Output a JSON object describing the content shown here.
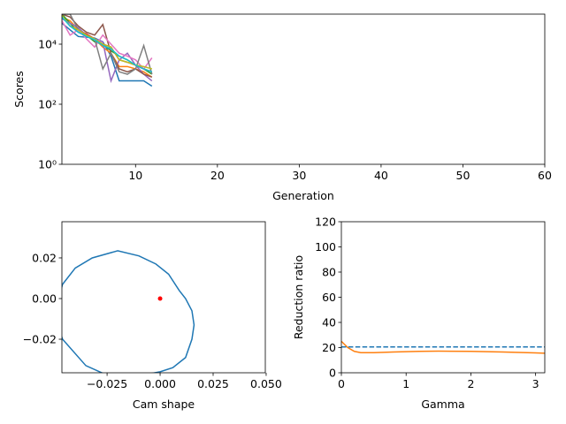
{
  "chart_data": [
    {
      "type": "line",
      "xlabel": "Generation",
      "ylabel": "Scores",
      "yscale": "log",
      "xlim": [
        1,
        60
      ],
      "ylim": [
        1,
        100000
      ],
      "xticks": [
        10,
        20,
        30,
        40,
        50,
        60
      ],
      "yticks": [
        {
          "value": 1,
          "label": "10⁰"
        },
        {
          "value": 100,
          "label": "10²"
        },
        {
          "value": 10000,
          "label": "10⁴"
        }
      ],
      "x": [
        1,
        2,
        3,
        4,
        5,
        6,
        7,
        8,
        9,
        10,
        11,
        12
      ],
      "series": [
        {
          "color": "#1f77b4",
          "values": [
            50000,
            30000,
            18000,
            17000,
            16000,
            12000,
            4000,
            600,
            600,
            600,
            600,
            400
          ]
        },
        {
          "color": "#ff7f0e",
          "values": [
            80000,
            60000,
            30000,
            20000,
            15000,
            8000,
            5000,
            1800,
            1800,
            1500,
            1200,
            800
          ]
        },
        {
          "color": "#2ca02c",
          "values": [
            100000,
            50000,
            25000,
            20000,
            12000,
            10000,
            6000,
            4000,
            3000,
            2000,
            1500,
            1000
          ]
        },
        {
          "color": "#d62728",
          "values": [
            90000,
            40000,
            30000,
            22000,
            15000,
            10000,
            8000,
            3000,
            2500,
            2000,
            1500,
            1200
          ]
        },
        {
          "color": "#9467bd",
          "values": [
            70000,
            50000,
            35000,
            20000,
            15000,
            12000,
            600,
            3000,
            5000,
            2000,
            1000,
            600
          ]
        },
        {
          "color": "#8c564b",
          "values": [
            100000,
            80000,
            40000,
            25000,
            20000,
            45000,
            5000,
            1500,
            1200,
            1500,
            1000,
            800
          ]
        },
        {
          "color": "#e377c2",
          "values": [
            60000,
            20000,
            30000,
            15000,
            8000,
            20000,
            10000,
            5000,
            4000,
            3000,
            1500,
            3500
          ]
        },
        {
          "color": "#7f7f7f",
          "values": [
            100000,
            100000,
            30000,
            20000,
            15000,
            1500,
            5000,
            1200,
            1000,
            1500,
            9000,
            1000
          ]
        },
        {
          "color": "#bcbd22",
          "values": [
            90000,
            40000,
            30000,
            20000,
            15000,
            10000,
            8000,
            3000,
            2500,
            2000,
            1800,
            1500
          ]
        },
        {
          "color": "#17becf",
          "values": [
            80000,
            40000,
            25000,
            18000,
            14000,
            9000,
            7000,
            4000,
            3000,
            2000,
            1500,
            1200
          ]
        }
      ]
    },
    {
      "type": "line",
      "xlabel": "Cam shape",
      "xlim": [
        -0.0463,
        0.0496
      ],
      "ylim": [
        -0.0365,
        0.0378
      ],
      "xticks": [
        {
          "value": -0.025,
          "label": "−0.025"
        },
        {
          "value": 0,
          "label": "0.000"
        },
        0.025,
        {
          "value": 0.05,
          "label": "0.050"
        }
      ],
      "yticks": [
        {
          "value": -0.02,
          "label": "−0.02"
        },
        {
          "value": 0,
          "label": "0.00"
        },
        0.02
      ],
      "series": [
        {
          "color": "#1f77b4",
          "x": [
            -0.046,
            -0.04,
            -0.032,
            -0.02,
            -0.01,
            -0.002,
            0.004,
            0.009,
            0.012,
            0.015,
            0.016,
            0.015,
            0.012,
            0.006,
            0.0,
            -0.01,
            -0.02,
            -0.035,
            -0.046,
            -0.05,
            -0.046
          ],
          "values": [
            0.007,
            0.015,
            0.02,
            0.0235,
            0.021,
            0.017,
            0.012,
            0.004,
            0.0,
            -0.006,
            -0.013,
            -0.02,
            -0.029,
            -0.034,
            -0.036,
            -0.038,
            -0.04,
            -0.033,
            -0.02,
            -0.008,
            0.007
          ]
        },
        {
          "color": "#ff0000",
          "linestyle": "none",
          "marker": "o",
          "x": [
            0
          ],
          "values": [
            0
          ]
        }
      ]
    },
    {
      "type": "line",
      "xlabel": "Gamma",
      "ylabel": "Reduction ratio",
      "xlim": [
        0,
        3.1416
      ],
      "ylim": [
        0,
        120
      ],
      "xticks": [
        0,
        1,
        2,
        3
      ],
      "yticks": [
        0,
        20,
        40,
        60,
        80,
        100,
        120
      ],
      "series": [
        {
          "color": "#1f77b4",
          "linestyle": "dashed",
          "x": [
            0,
            3.1416
          ],
          "values": [
            20.5,
            20.5
          ]
        },
        {
          "color": "#ff7f0e",
          "x": [
            0,
            0.1,
            0.2,
            0.3,
            0.5,
            0.8,
            1.2,
            1.5,
            2.0,
            2.5,
            3.0,
            3.1416
          ],
          "values": [
            25,
            20,
            17,
            16,
            16,
            16.5,
            17,
            17.2,
            17,
            16.5,
            15.8,
            15.5
          ]
        }
      ]
    }
  ]
}
